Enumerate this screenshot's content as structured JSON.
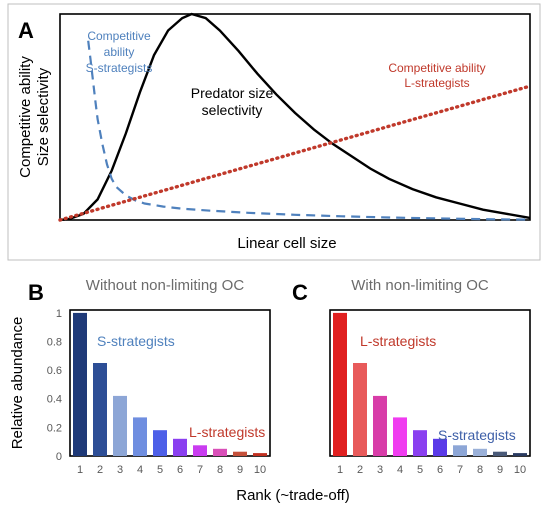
{
  "chart_data": [
    {
      "panel": "A",
      "type": "line",
      "ylabel_lines": [
        "Competitive ability",
        "Size selectivity"
      ],
      "xlabel": "Linear cell size",
      "x_range": [
        0,
        1
      ],
      "y_range": [
        0,
        1
      ],
      "series": [
        {
          "name_lines": [
            "Predator size",
            "selectivity"
          ],
          "color": "#000000",
          "style": "solid",
          "points": [
            [
              0,
              0
            ],
            [
              0.02,
              0.005
            ],
            [
              0.05,
              0.03
            ],
            [
              0.08,
              0.1
            ],
            [
              0.11,
              0.24
            ],
            [
              0.14,
              0.42
            ],
            [
              0.17,
              0.62
            ],
            [
              0.2,
              0.8
            ],
            [
              0.23,
              0.92
            ],
            [
              0.26,
              0.98
            ],
            [
              0.28,
              1.0
            ],
            [
              0.31,
              0.98
            ],
            [
              0.34,
              0.92
            ],
            [
              0.38,
              0.82
            ],
            [
              0.42,
              0.71
            ],
            [
              0.46,
              0.61
            ],
            [
              0.5,
              0.52
            ],
            [
              0.54,
              0.44
            ],
            [
              0.58,
              0.37
            ],
            [
              0.62,
              0.31
            ],
            [
              0.66,
              0.25
            ],
            [
              0.7,
              0.2
            ],
            [
              0.75,
              0.15
            ],
            [
              0.8,
              0.11
            ],
            [
              0.85,
              0.08
            ],
            [
              0.9,
              0.05
            ],
            [
              0.95,
              0.03
            ],
            [
              1.0,
              0.01
            ]
          ]
        },
        {
          "name_lines": [
            "Competitive",
            "ability",
            "S-strategists"
          ],
          "color": "#4f81bd",
          "style": "dashed",
          "points": [
            [
              0.06,
              0.87
            ],
            [
              0.065,
              0.78
            ],
            [
              0.07,
              0.68
            ],
            [
              0.075,
              0.58
            ],
            [
              0.08,
              0.49
            ],
            [
              0.09,
              0.37
            ],
            [
              0.1,
              0.27
            ],
            [
              0.11,
              0.2
            ],
            [
              0.12,
              0.16
            ],
            [
              0.14,
              0.12
            ],
            [
              0.16,
              0.095
            ],
            [
              0.18,
              0.08
            ],
            [
              0.22,
              0.065
            ],
            [
              0.26,
              0.055
            ],
            [
              0.32,
              0.045
            ],
            [
              0.4,
              0.035
            ],
            [
              0.5,
              0.025
            ],
            [
              0.6,
              0.018
            ],
            [
              0.7,
              0.012
            ],
            [
              0.8,
              0.008
            ],
            [
              0.9,
              0.004
            ],
            [
              1.0,
              0.002
            ]
          ]
        },
        {
          "name_lines": [
            "Competitive ability",
            "L-strategists"
          ],
          "color": "#c0392b",
          "style": "dotted",
          "points": [
            [
              0,
              0
            ],
            [
              1.0,
              0.65
            ]
          ]
        }
      ]
    },
    {
      "panel": "B",
      "type": "bar",
      "title": "Without non-limiting OC",
      "categories": [
        "1",
        "2",
        "3",
        "4",
        "5",
        "6",
        "7",
        "8",
        "9",
        "10"
      ],
      "values": [
        1.0,
        0.65,
        0.42,
        0.27,
        0.18,
        0.12,
        0.075,
        0.05,
        0.03,
        0.02
      ],
      "colors": [
        "#1f3a78",
        "#2d4e96",
        "#8da6d6",
        "#6f8ee0",
        "#4d5fe8",
        "#8a3ff0",
        "#c93cf0",
        "#d94fb8",
        "#c4503a",
        "#c03020"
      ],
      "yticks": [
        "0",
        "0.2",
        "0.4",
        "0.6",
        "0.8",
        "1"
      ],
      "ylim": [
        0,
        1.02
      ],
      "annotations": [
        "S-strategists",
        "L-strategists"
      ]
    },
    {
      "panel": "C",
      "type": "bar",
      "title": "With non-limiting OC",
      "categories": [
        "1",
        "2",
        "3",
        "4",
        "5",
        "6",
        "7",
        "8",
        "9",
        "10"
      ],
      "values": [
        1.0,
        0.65,
        0.42,
        0.27,
        0.18,
        0.12,
        0.075,
        0.05,
        0.03,
        0.02
      ],
      "colors": [
        "#e02020",
        "#e85a5a",
        "#d83ca8",
        "#f03cf0",
        "#8a3ff0",
        "#5a3ae8",
        "#8da6d6",
        "#9ab0d8",
        "#4a5a78",
        "#2a3a60"
      ],
      "ylim": [
        0,
        1.02
      ],
      "annotations": [
        "L-strategists",
        "S-strategists"
      ]
    }
  ],
  "panel_letters": [
    "A",
    "B",
    "C"
  ],
  "shared": {
    "ylabel": "Relative abundance",
    "xlabel": "Rank (~trade-off)"
  }
}
